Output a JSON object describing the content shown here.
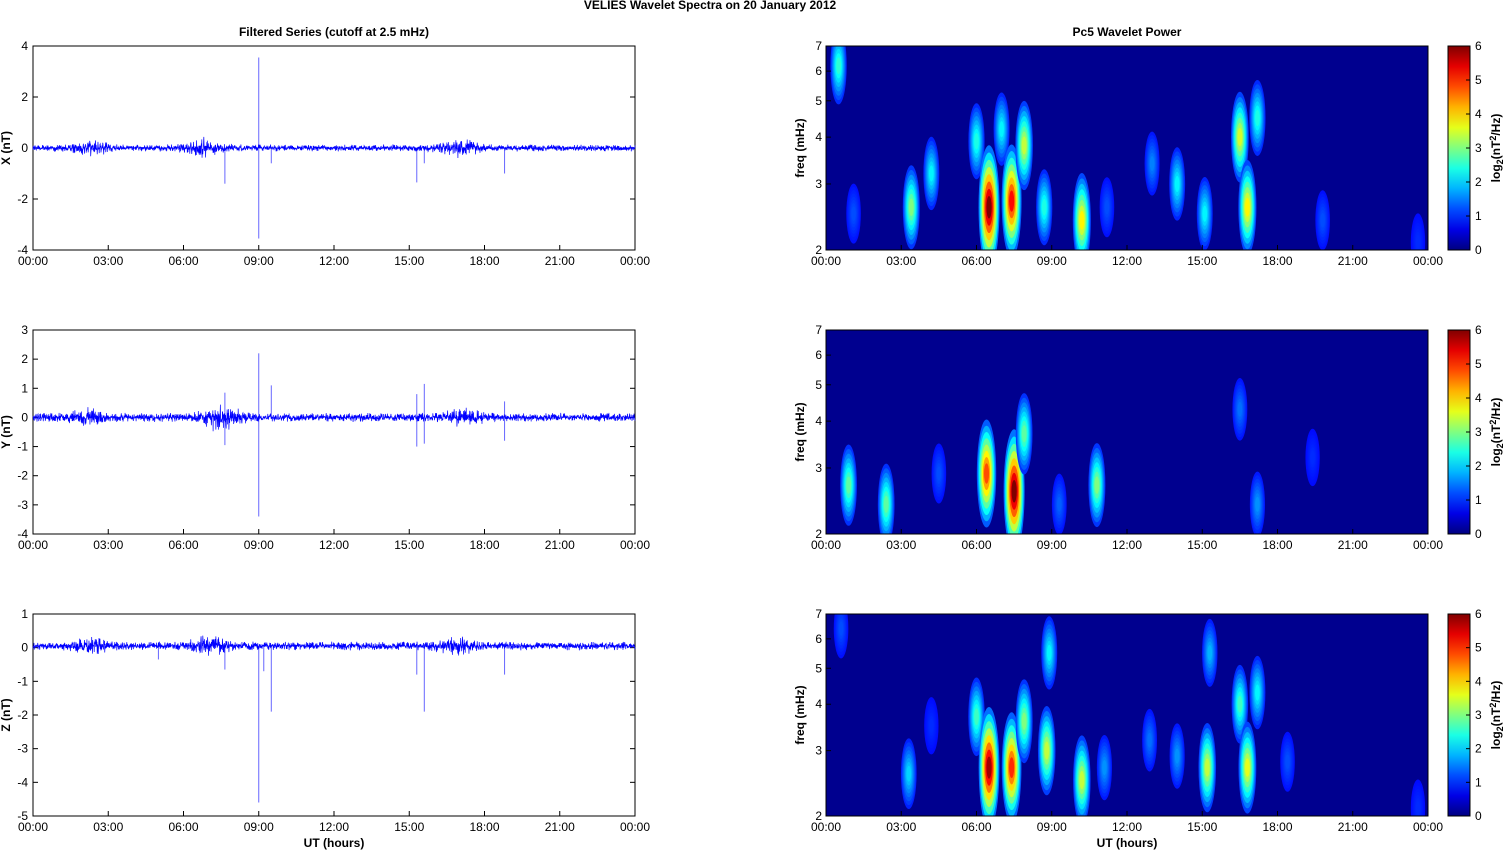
{
  "figure_title": "VELIES Wavelet Spectra on 20 January   2012",
  "colors": {
    "trace": "#0000ff",
    "spectrum_background": "#00008f",
    "axis": "#000000"
  },
  "chart_data": [
    {
      "type": "line",
      "title": "Filtered Series (cutoff at 2.5 mHz)",
      "ylabel": "X (nT)",
      "xlabel": "",
      "x_ticks": [
        "00:00",
        "03:00",
        "06:00",
        "09:00",
        "12:00",
        "15:00",
        "18:00",
        "21:00",
        "00:00"
      ],
      "xlim_hours": [
        0,
        24
      ],
      "ylim": [
        -4,
        4
      ],
      "y_ticks": [
        -4,
        -2,
        0,
        2,
        4
      ],
      "baseline": 0,
      "noise_amplitude": 0.14,
      "bursts": [
        {
          "t": 2.3,
          "a": 0.22
        },
        {
          "t": 6.8,
          "a": 0.3
        },
        {
          "t": 17.0,
          "a": 0.28
        }
      ],
      "spikes": [
        [
          7.65,
          -1.4
        ],
        [
          9.0,
          3.55
        ],
        [
          9.0,
          -3.55
        ],
        [
          9.5,
          -0.6
        ],
        [
          15.3,
          -1.35
        ],
        [
          15.6,
          -0.6
        ],
        [
          18.8,
          -1.0
        ]
      ]
    },
    {
      "type": "heatmap",
      "title": "Pc5 Wavelet Power",
      "ylabel": "freq (mHz)",
      "xlabel": "",
      "x_ticks": [
        "00:00",
        "03:00",
        "06:00",
        "09:00",
        "12:00",
        "15:00",
        "18:00",
        "21:00",
        "00:00"
      ],
      "xlim_hours": [
        0,
        24
      ],
      "ylim_mhz": [
        2,
        7
      ],
      "y_scale": "log",
      "y_ticks": [
        2,
        3,
        4,
        5,
        6,
        7
      ],
      "colorbar": {
        "label": "log2(nT2/Hz)",
        "range": [
          0,
          6
        ],
        "ticks": [
          0,
          1,
          2,
          3,
          4,
          5,
          6
        ]
      },
      "blobs": [
        {
          "t": 0.5,
          "f": 6.2,
          "p": 2.5
        },
        {
          "t": 1.1,
          "f": 2.5,
          "p": 1.2
        },
        {
          "t": 3.4,
          "f": 2.6,
          "p": 3.0
        },
        {
          "t": 4.2,
          "f": 3.2,
          "p": 2.2
        },
        {
          "t": 6.0,
          "f": 3.9,
          "p": 2.4
        },
        {
          "t": 6.5,
          "f": 2.6,
          "p": 6.0
        },
        {
          "t": 7.0,
          "f": 4.2,
          "p": 2.2
        },
        {
          "t": 7.4,
          "f": 2.7,
          "p": 5.2
        },
        {
          "t": 7.9,
          "f": 3.8,
          "p": 3.4
        },
        {
          "t": 8.7,
          "f": 2.6,
          "p": 2.4
        },
        {
          "t": 10.2,
          "f": 2.4,
          "p": 3.8
        },
        {
          "t": 11.2,
          "f": 2.6,
          "p": 1.2
        },
        {
          "t": 13.0,
          "f": 3.4,
          "p": 1.5
        },
        {
          "t": 14.0,
          "f": 3.0,
          "p": 2.2
        },
        {
          "t": 15.1,
          "f": 2.5,
          "p": 2.2
        },
        {
          "t": 16.5,
          "f": 4.0,
          "p": 3.5
        },
        {
          "t": 16.8,
          "f": 2.6,
          "p": 3.8
        },
        {
          "t": 17.2,
          "f": 4.5,
          "p": 2.4
        },
        {
          "t": 19.8,
          "f": 2.4,
          "p": 1.2
        },
        {
          "t": 23.6,
          "f": 2.1,
          "p": 1.0
        }
      ]
    },
    {
      "type": "line",
      "title": "",
      "ylabel": "Y (nT)",
      "xlabel": "",
      "x_ticks": [
        "00:00",
        "03:00",
        "06:00",
        "09:00",
        "12:00",
        "15:00",
        "18:00",
        "21:00",
        "00:00"
      ],
      "xlim_hours": [
        0,
        24
      ],
      "ylim": [
        -4,
        3
      ],
      "y_ticks": [
        -4,
        -3,
        -2,
        -1,
        0,
        1,
        2,
        3
      ],
      "baseline": 0,
      "noise_amplitude": 0.16,
      "bursts": [
        {
          "t": 2.2,
          "a": 0.2
        },
        {
          "t": 7.5,
          "a": 0.4
        },
        {
          "t": 17.2,
          "a": 0.22
        }
      ],
      "spikes": [
        [
          7.65,
          0.85
        ],
        [
          7.65,
          -0.95
        ],
        [
          9.0,
          2.2
        ],
        [
          9.0,
          -3.4
        ],
        [
          9.5,
          1.1
        ],
        [
          15.3,
          0.8
        ],
        [
          15.3,
          -1.0
        ],
        [
          15.6,
          1.15
        ],
        [
          15.6,
          -0.9
        ],
        [
          18.8,
          0.55
        ],
        [
          18.8,
          -0.8
        ]
      ]
    },
    {
      "type": "heatmap",
      "title": "",
      "ylabel": "freq (mHz)",
      "xlabel": "",
      "x_ticks": [
        "00:00",
        "03:00",
        "06:00",
        "09:00",
        "12:00",
        "15:00",
        "18:00",
        "21:00",
        "00:00"
      ],
      "xlim_hours": [
        0,
        24
      ],
      "ylim_mhz": [
        2,
        7
      ],
      "y_scale": "log",
      "y_ticks": [
        2,
        3,
        4,
        5,
        6,
        7
      ],
      "colorbar": {
        "label": "log2(nT2/Hz)",
        "range": [
          0,
          6
        ],
        "ticks": [
          0,
          1,
          2,
          3,
          4,
          5,
          6
        ]
      },
      "blobs": [
        {
          "t": 0.9,
          "f": 2.7,
          "p": 2.8
        },
        {
          "t": 2.4,
          "f": 2.4,
          "p": 2.8
        },
        {
          "t": 4.5,
          "f": 2.9,
          "p": 1.2
        },
        {
          "t": 6.4,
          "f": 2.9,
          "p": 4.8
        },
        {
          "t": 7.5,
          "f": 2.6,
          "p": 6.0
        },
        {
          "t": 7.9,
          "f": 3.7,
          "p": 2.8
        },
        {
          "t": 9.3,
          "f": 2.4,
          "p": 1.3
        },
        {
          "t": 10.8,
          "f": 2.7,
          "p": 3.0
        },
        {
          "t": 16.5,
          "f": 4.3,
          "p": 1.4
        },
        {
          "t": 17.2,
          "f": 2.4,
          "p": 1.6
        },
        {
          "t": 19.4,
          "f": 3.2,
          "p": 1.0
        }
      ]
    },
    {
      "type": "line",
      "title": "",
      "ylabel": "Z (nT)",
      "xlabel": "UT (hours)",
      "x_ticks": [
        "00:00",
        "03:00",
        "06:00",
        "09:00",
        "12:00",
        "15:00",
        "18:00",
        "21:00",
        "00:00"
      ],
      "xlim_hours": [
        0,
        24
      ],
      "ylim": [
        -5,
        1
      ],
      "y_ticks": [
        -5,
        -4,
        -3,
        -2,
        -1,
        0,
        1
      ],
      "baseline": 0.05,
      "noise_amplitude": 0.13,
      "bursts": [
        {
          "t": 2.3,
          "a": 0.18
        },
        {
          "t": 7.0,
          "a": 0.22
        },
        {
          "t": 16.8,
          "a": 0.2
        }
      ],
      "spikes": [
        [
          5.0,
          -0.35
        ],
        [
          7.65,
          -0.65
        ],
        [
          9.0,
          -4.6
        ],
        [
          9.2,
          -0.7
        ],
        [
          9.5,
          -1.9
        ],
        [
          15.3,
          -0.8
        ],
        [
          15.6,
          -1.9
        ],
        [
          18.8,
          -0.8
        ]
      ]
    },
    {
      "type": "heatmap",
      "title": "",
      "ylabel": "freq (mHz)",
      "xlabel": "UT (hours)",
      "x_ticks": [
        "00:00",
        "03:00",
        "06:00",
        "09:00",
        "12:00",
        "15:00",
        "18:00",
        "21:00",
        "00:00"
      ],
      "xlim_hours": [
        0,
        24
      ],
      "ylim_mhz": [
        2,
        7
      ],
      "y_scale": "log",
      "y_ticks": [
        2,
        3,
        4,
        5,
        6,
        7
      ],
      "colorbar": {
        "label": "log2(nT2/Hz)",
        "range": [
          0,
          6
        ],
        "ticks": [
          0,
          1,
          2,
          3,
          4,
          5,
          6
        ]
      },
      "blobs": [
        {
          "t": 0.6,
          "f": 6.4,
          "p": 1.2
        },
        {
          "t": 3.3,
          "f": 2.6,
          "p": 2.0
        },
        {
          "t": 4.2,
          "f": 3.5,
          "p": 1.0
        },
        {
          "t": 6.0,
          "f": 3.7,
          "p": 2.6
        },
        {
          "t": 6.5,
          "f": 2.7,
          "p": 5.8
        },
        {
          "t": 7.4,
          "f": 2.7,
          "p": 5.0
        },
        {
          "t": 7.9,
          "f": 3.6,
          "p": 3.0
        },
        {
          "t": 8.8,
          "f": 3.0,
          "p": 3.4
        },
        {
          "t": 8.9,
          "f": 5.5,
          "p": 2.2
        },
        {
          "t": 10.2,
          "f": 2.5,
          "p": 3.4
        },
        {
          "t": 11.1,
          "f": 2.7,
          "p": 1.6
        },
        {
          "t": 12.9,
          "f": 3.2,
          "p": 1.4
        },
        {
          "t": 14.0,
          "f": 2.9,
          "p": 1.6
        },
        {
          "t": 15.2,
          "f": 2.7,
          "p": 3.4
        },
        {
          "t": 15.3,
          "f": 5.5,
          "p": 1.8
        },
        {
          "t": 16.5,
          "f": 4.0,
          "p": 2.6
        },
        {
          "t": 16.8,
          "f": 2.7,
          "p": 3.6
        },
        {
          "t": 17.2,
          "f": 4.3,
          "p": 2.2
        },
        {
          "t": 18.4,
          "f": 2.8,
          "p": 1.2
        },
        {
          "t": 23.6,
          "f": 2.1,
          "p": 1.0
        }
      ]
    }
  ]
}
